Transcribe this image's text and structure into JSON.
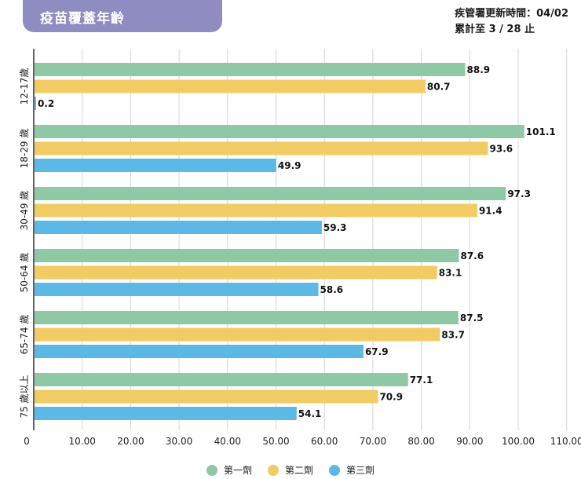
{
  "header": {
    "title": "疫苗覆蓋年齡",
    "update_line1": "疾管署更新時間：04/02",
    "update_line2": "累計至 3 / 28 止"
  },
  "colors": {
    "title_bg": "#8e8cc0",
    "dose1": "#8fc8a4",
    "dose2": "#f1cb64",
    "dose3": "#5cb8e4",
    "grid": "#d6d6d6"
  },
  "chart_data": {
    "type": "bar",
    "orientation": "horizontal",
    "categories": [
      "12-17歲",
      "18-29 歲",
      "30-49 歲",
      "50-64 歲",
      "65-74 歲",
      "75 歲以上"
    ],
    "series": [
      {
        "name": "第一劑",
        "values": [
          88.9,
          101.1,
          97.3,
          87.6,
          87.5,
          77.1
        ]
      },
      {
        "name": "第二劑",
        "values": [
          80.7,
          93.6,
          91.4,
          83.1,
          83.7,
          70.9
        ]
      },
      {
        "name": "第三劑",
        "values": [
          0.2,
          49.9,
          59.3,
          58.6,
          67.9,
          54.1
        ]
      }
    ],
    "xlim": [
      0,
      110
    ],
    "xticks": [
      "0",
      "10.00",
      "20.00",
      "30.00",
      "40.00",
      "50.00",
      "60.00",
      "70.00",
      "80.00",
      "90.00",
      "100.00",
      "110.00"
    ],
    "grid": true,
    "legend_position": "bottom"
  }
}
